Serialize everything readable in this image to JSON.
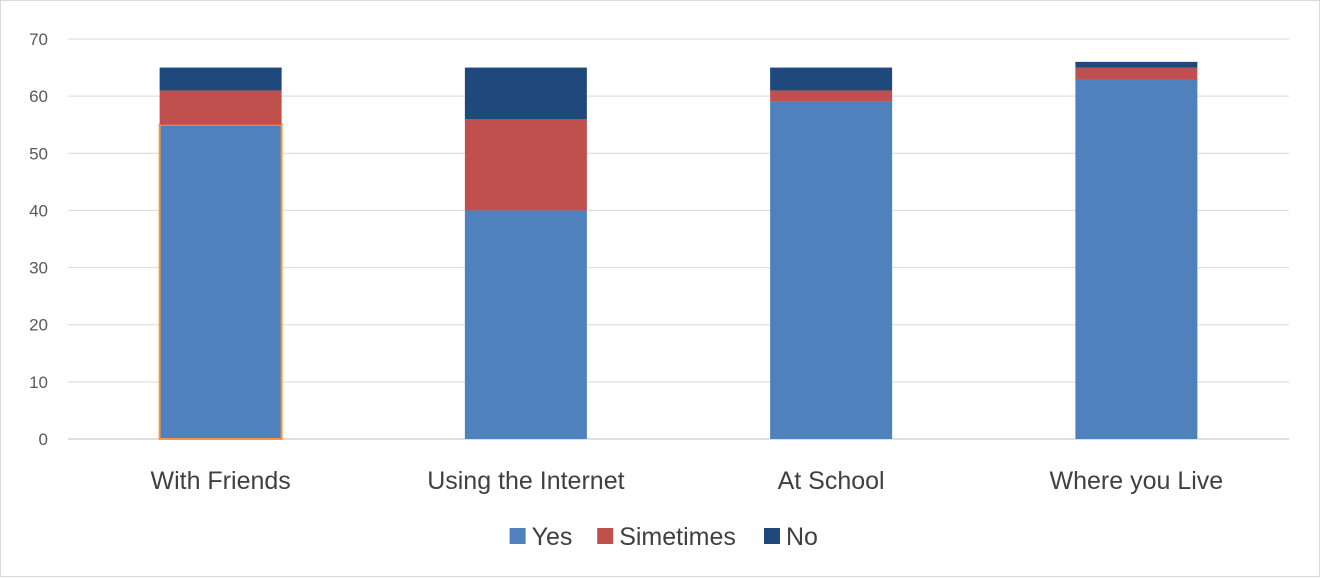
{
  "chart_data": {
    "type": "bar",
    "stacked": true,
    "categories": [
      "With Friends",
      "Using the Internet",
      "At School",
      "Where you Live"
    ],
    "series": [
      {
        "name": "Yes",
        "values": [
          55,
          40,
          59,
          63
        ],
        "color": "#4f81bd"
      },
      {
        "name": "Simetimes",
        "values": [
          6,
          16,
          2,
          2
        ],
        "color": "#c0504d"
      },
      {
        "name": "No",
        "values": [
          4,
          9,
          4,
          1
        ],
        "color": "#1f497d"
      }
    ],
    "title": "",
    "xlabel": "",
    "ylabel": "",
    "ylim": [
      0,
      70
    ],
    "yticks": [
      "0",
      "10",
      "20",
      "30",
      "40",
      "50",
      "60",
      "70"
    ],
    "grid": true,
    "legend": "bottom",
    "highlighted_bar": {
      "category": "With Friends",
      "series": "Yes",
      "outline_color": "#f79646"
    }
  }
}
